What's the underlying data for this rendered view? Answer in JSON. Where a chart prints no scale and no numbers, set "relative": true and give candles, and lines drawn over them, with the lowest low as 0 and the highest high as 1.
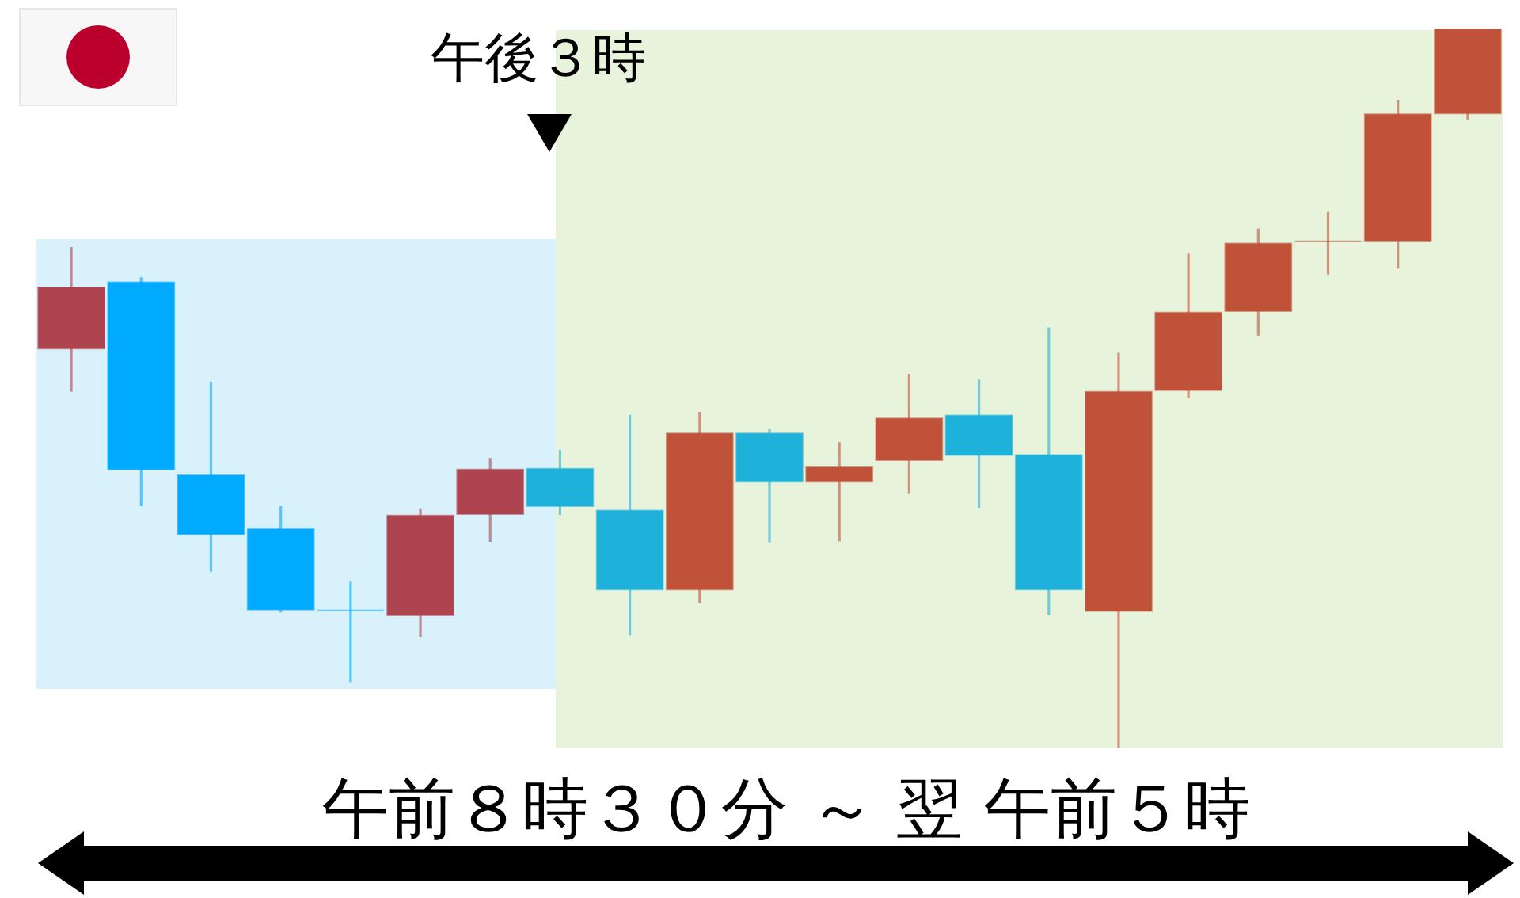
{
  "chart_data": {
    "type": "candlestick",
    "relative": true,
    "xlabel": "午前８時３０分 ～ 翌 午前５時",
    "annotations": [
      "午後３時"
    ],
    "categories": [
      null,
      null,
      null,
      null,
      null,
      null,
      null,
      null,
      null,
      null,
      null,
      null,
      null,
      null,
      null,
      null,
      null,
      null,
      null,
      null,
      null
    ],
    "ohlc": [
      [
        0.556,
        0.697,
        0.496,
        0.641
      ],
      [
        0.648,
        0.655,
        0.337,
        0.388
      ],
      [
        0.38,
        0.51,
        0.246,
        0.298
      ],
      [
        0.305,
        0.337,
        0.189,
        0.193
      ],
      [
        0.192,
        0.232,
        0.092,
        0.192
      ],
      [
        0.185,
        0.333,
        0.155,
        0.324
      ],
      [
        0.326,
        0.404,
        0.287,
        0.388
      ],
      [
        0.389,
        0.415,
        0.325,
        0.337
      ],
      [
        0.331,
        0.464,
        0.157,
        0.221
      ],
      [
        0.221,
        0.468,
        0.202,
        0.438
      ],
      [
        0.438,
        0.444,
        0.286,
        0.371
      ],
      [
        0.371,
        0.426,
        0.288,
        0.391
      ],
      [
        0.401,
        0.521,
        0.354,
        0.459
      ],
      [
        0.463,
        0.513,
        0.334,
        0.408
      ],
      [
        0.408,
        0.585,
        0.185,
        0.221
      ],
      [
        0.191,
        0.55,
        0,
        0.496
      ],
      [
        0.498,
        0.688,
        0.487,
        0.606
      ],
      [
        0.608,
        0.723,
        0.574,
        0.702
      ],
      [
        0.705,
        0.746,
        0.659,
        0.705
      ],
      [
        0.706,
        0.902,
        0.667,
        0.882
      ],
      [
        0.883,
        1,
        0.874,
        1
      ]
    ],
    "colors": [
      "#ad4450",
      "#00aaff",
      "#00aaff",
      "#00aaff",
      "#00aaff",
      "#ad4450",
      "#ad4450",
      "#1eb1da",
      "#1eb1da",
      "#c0523a",
      "#1eb1da",
      "#c0523a",
      "#c0523a",
      "#1eb1da",
      "#1eb1da",
      "#c0523a",
      "#c0523a",
      "#c0523a",
      "#c0523a",
      "#c0523a",
      "#c0523a"
    ]
  }
}
